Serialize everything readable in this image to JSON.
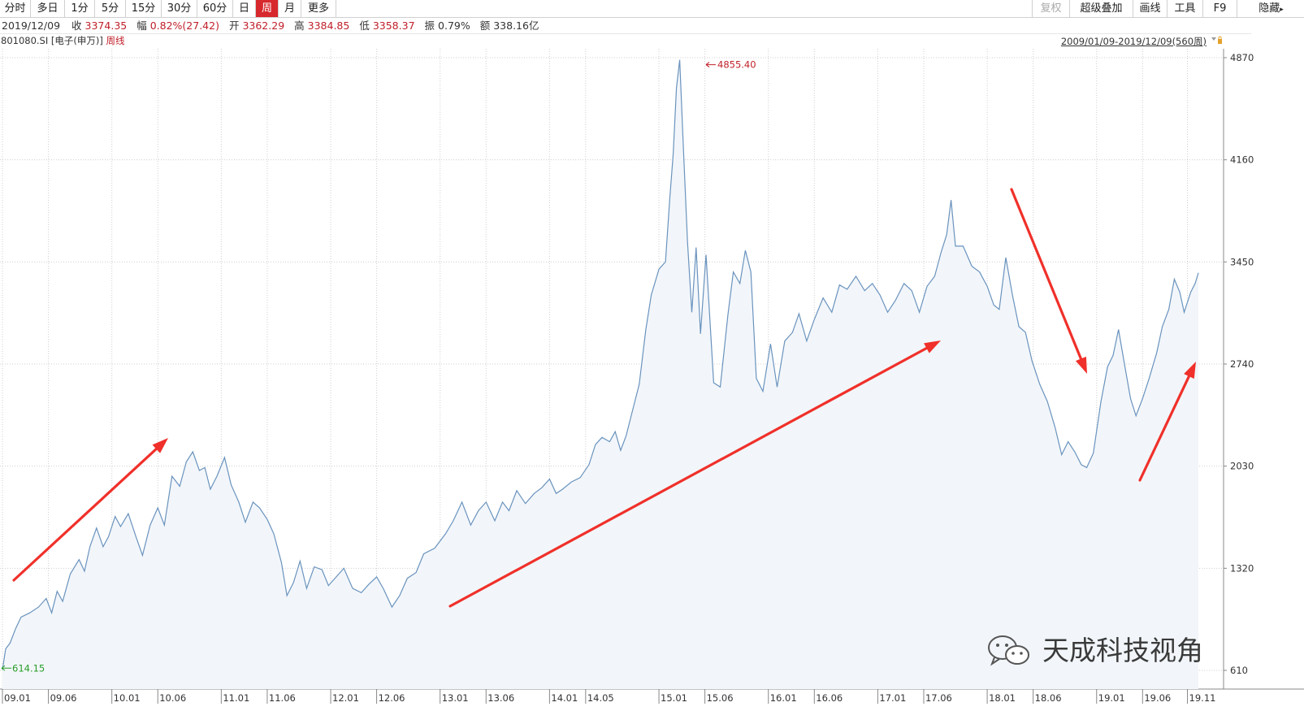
{
  "toolbar": {
    "tabs": [
      "分时",
      "多日",
      "1分",
      "5分",
      "15分",
      "30分",
      "60分",
      "日",
      "周",
      "月",
      "更多"
    ],
    "active_tab": "周",
    "right_buttons": [
      "复权",
      "超级叠加",
      "画线",
      "工具",
      "F9",
      "隐藏"
    ]
  },
  "quote": {
    "date": "2019/12/09",
    "close_label": "收",
    "close": "3374.35",
    "change_label": "幅",
    "change": "0.82%(27.42)",
    "open_label": "开",
    "open": "3362.29",
    "high_label": "高",
    "high": "3384.85",
    "low_label": "低",
    "low": "3358.37",
    "amplitude_label": "振",
    "amplitude": "0.79%",
    "amount_label": "额",
    "amount": "338.16亿"
  },
  "instrument": {
    "code": "801080.SI",
    "name": "[电子(申万)]",
    "period": "周线",
    "range": "2009/01/09-2019/12/09(560周)"
  },
  "watermark": "天成科技视角",
  "colors": {
    "line": "#6a93be",
    "fill": "#f2f6fa",
    "active_tab": "#d7282d",
    "max_label": "#c0202a",
    "min_label": "#2a9d2a",
    "arrow": "#f0302a"
  },
  "chart_data": {
    "type": "area",
    "title": "",
    "xlabel": "",
    "ylabel": "",
    "ylim": [
      455,
      4950
    ],
    "xlim": [
      2009.0,
      2020.0
    ],
    "y_ticks": [
      4870,
      4160,
      3450,
      2740,
      2030,
      1320,
      610
    ],
    "x_ticks": [
      {
        "label": "09.01",
        "t": 2009.0
      },
      {
        "label": "09.06",
        "t": 2009.42
      },
      {
        "label": "10.01",
        "t": 2010.0
      },
      {
        "label": "10.06",
        "t": 2010.42
      },
      {
        "label": "11.01",
        "t": 2011.0
      },
      {
        "label": "11.06",
        "t": 2011.42
      },
      {
        "label": "12.01",
        "t": 2012.0
      },
      {
        "label": "12.06",
        "t": 2012.42
      },
      {
        "label": "13.01",
        "t": 2013.0
      },
      {
        "label": "13.06",
        "t": 2013.42
      },
      {
        "label": "14.01",
        "t": 2014.0
      },
      {
        "label": "14.05",
        "t": 2014.33
      },
      {
        "label": "15.01",
        "t": 2015.0
      },
      {
        "label": "15.06",
        "t": 2015.42
      },
      {
        "label": "16.01",
        "t": 2016.0
      },
      {
        "label": "16.06",
        "t": 2016.42
      },
      {
        "label": "17.01",
        "t": 2017.0
      },
      {
        "label": "17.06",
        "t": 2017.42
      },
      {
        "label": "18.01",
        "t": 2018.0
      },
      {
        "label": "18.06",
        "t": 2018.42
      },
      {
        "label": "19.01",
        "t": 2019.0
      },
      {
        "label": "19.06",
        "t": 2019.42
      },
      {
        "label": "19.11",
        "t": 2019.83
      }
    ],
    "series": [
      {
        "points": [
          [
            2009.0,
            614
          ],
          [
            2009.03,
            760
          ],
          [
            2009.07,
            800
          ],
          [
            2009.12,
            900
          ],
          [
            2009.17,
            980
          ],
          [
            2009.25,
            1010
          ],
          [
            2009.33,
            1050
          ],
          [
            2009.4,
            1110
          ],
          [
            2009.45,
            1010
          ],
          [
            2009.5,
            1160
          ],
          [
            2009.55,
            1090
          ],
          [
            2009.62,
            1280
          ],
          [
            2009.7,
            1380
          ],
          [
            2009.75,
            1300
          ],
          [
            2009.8,
            1470
          ],
          [
            2009.86,
            1600
          ],
          [
            2009.92,
            1470
          ],
          [
            2009.97,
            1540
          ],
          [
            2010.03,
            1680
          ],
          [
            2010.08,
            1610
          ],
          [
            2010.15,
            1700
          ],
          [
            2010.22,
            1540
          ],
          [
            2010.28,
            1410
          ],
          [
            2010.35,
            1620
          ],
          [
            2010.42,
            1740
          ],
          [
            2010.48,
            1620
          ],
          [
            2010.55,
            1960
          ],
          [
            2010.62,
            1890
          ],
          [
            2010.68,
            2060
          ],
          [
            2010.74,
            2130
          ],
          [
            2010.8,
            2000
          ],
          [
            2010.85,
            2020
          ],
          [
            2010.9,
            1870
          ],
          [
            2010.96,
            1960
          ],
          [
            2011.03,
            2090
          ],
          [
            2011.09,
            1900
          ],
          [
            2011.16,
            1780
          ],
          [
            2011.22,
            1640
          ],
          [
            2011.29,
            1780
          ],
          [
            2011.35,
            1740
          ],
          [
            2011.42,
            1660
          ],
          [
            2011.48,
            1560
          ],
          [
            2011.55,
            1360
          ],
          [
            2011.6,
            1130
          ],
          [
            2011.66,
            1220
          ],
          [
            2011.72,
            1370
          ],
          [
            2011.78,
            1180
          ],
          [
            2011.85,
            1330
          ],
          [
            2011.92,
            1310
          ],
          [
            2011.98,
            1200
          ],
          [
            2012.05,
            1260
          ],
          [
            2012.12,
            1320
          ],
          [
            2012.2,
            1180
          ],
          [
            2012.28,
            1150
          ],
          [
            2012.35,
            1210
          ],
          [
            2012.42,
            1260
          ],
          [
            2012.48,
            1180
          ],
          [
            2012.56,
            1050
          ],
          [
            2012.63,
            1130
          ],
          [
            2012.7,
            1250
          ],
          [
            2012.78,
            1290
          ],
          [
            2012.85,
            1420
          ],
          [
            2012.95,
            1460
          ],
          [
            2013.05,
            1560
          ],
          [
            2013.12,
            1650
          ],
          [
            2013.2,
            1780
          ],
          [
            2013.28,
            1620
          ],
          [
            2013.35,
            1720
          ],
          [
            2013.42,
            1780
          ],
          [
            2013.5,
            1650
          ],
          [
            2013.57,
            1780
          ],
          [
            2013.63,
            1720
          ],
          [
            2013.7,
            1860
          ],
          [
            2013.78,
            1770
          ],
          [
            2013.86,
            1840
          ],
          [
            2013.93,
            1880
          ],
          [
            2014.0,
            1940
          ],
          [
            2014.06,
            1840
          ],
          [
            2014.12,
            1870
          ],
          [
            2014.2,
            1920
          ],
          [
            2014.28,
            1950
          ],
          [
            2014.36,
            2040
          ],
          [
            2014.42,
            2180
          ],
          [
            2014.48,
            2230
          ],
          [
            2014.55,
            2200
          ],
          [
            2014.6,
            2270
          ],
          [
            2014.65,
            2140
          ],
          [
            2014.7,
            2240
          ],
          [
            2014.76,
            2420
          ],
          [
            2014.82,
            2600
          ],
          [
            2014.88,
            2980
          ],
          [
            2014.93,
            3220
          ],
          [
            2015.0,
            3400
          ],
          [
            2015.06,
            3450
          ],
          [
            2015.1,
            3900
          ],
          [
            2015.13,
            4200
          ],
          [
            2015.16,
            4660
          ],
          [
            2015.19,
            4855
          ],
          [
            2015.22,
            4300
          ],
          [
            2015.26,
            3600
          ],
          [
            2015.3,
            3100
          ],
          [
            2015.34,
            3550
          ],
          [
            2015.38,
            2950
          ],
          [
            2015.43,
            3500
          ],
          [
            2015.5,
            2610
          ],
          [
            2015.56,
            2580
          ],
          [
            2015.63,
            3080
          ],
          [
            2015.68,
            3380
          ],
          [
            2015.74,
            3300
          ],
          [
            2015.79,
            3530
          ],
          [
            2015.84,
            3380
          ],
          [
            2015.89,
            2640
          ],
          [
            2015.95,
            2550
          ],
          [
            2016.02,
            2880
          ],
          [
            2016.08,
            2580
          ],
          [
            2016.15,
            2900
          ],
          [
            2016.22,
            2960
          ],
          [
            2016.28,
            3090
          ],
          [
            2016.35,
            2900
          ],
          [
            2016.42,
            3050
          ],
          [
            2016.5,
            3200
          ],
          [
            2016.58,
            3100
          ],
          [
            2016.65,
            3290
          ],
          [
            2016.72,
            3260
          ],
          [
            2016.8,
            3350
          ],
          [
            2016.88,
            3250
          ],
          [
            2016.95,
            3300
          ],
          [
            2017.02,
            3220
          ],
          [
            2017.09,
            3100
          ],
          [
            2017.16,
            3180
          ],
          [
            2017.24,
            3300
          ],
          [
            2017.31,
            3250
          ],
          [
            2017.38,
            3100
          ],
          [
            2017.45,
            3280
          ],
          [
            2017.52,
            3350
          ],
          [
            2017.58,
            3520
          ],
          [
            2017.63,
            3640
          ],
          [
            2017.67,
            3880
          ],
          [
            2017.71,
            3560
          ],
          [
            2017.78,
            3560
          ],
          [
            2017.86,
            3420
          ],
          [
            2017.93,
            3380
          ],
          [
            2018.0,
            3280
          ],
          [
            2018.06,
            3150
          ],
          [
            2018.11,
            3120
          ],
          [
            2018.17,
            3480
          ],
          [
            2018.23,
            3220
          ],
          [
            2018.29,
            3000
          ],
          [
            2018.35,
            2960
          ],
          [
            2018.41,
            2760
          ],
          [
            2018.48,
            2600
          ],
          [
            2018.55,
            2480
          ],
          [
            2018.62,
            2300
          ],
          [
            2018.68,
            2110
          ],
          [
            2018.74,
            2200
          ],
          [
            2018.8,
            2130
          ],
          [
            2018.86,
            2040
          ],
          [
            2018.91,
            2020
          ],
          [
            2018.97,
            2120
          ],
          [
            2019.04,
            2480
          ],
          [
            2019.1,
            2720
          ],
          [
            2019.15,
            2800
          ],
          [
            2019.2,
            2980
          ],
          [
            2019.25,
            2760
          ],
          [
            2019.31,
            2500
          ],
          [
            2019.36,
            2380
          ],
          [
            2019.42,
            2500
          ],
          [
            2019.48,
            2640
          ],
          [
            2019.55,
            2820
          ],
          [
            2019.6,
            3000
          ],
          [
            2019.66,
            3120
          ],
          [
            2019.71,
            3330
          ],
          [
            2019.76,
            3240
          ],
          [
            2019.8,
            3100
          ],
          [
            2019.86,
            3240
          ],
          [
            2019.9,
            3300
          ],
          [
            2019.93,
            3374
          ]
        ]
      }
    ],
    "annotations": [
      {
        "text": "4855.40",
        "value": 4855.4,
        "kind": "max"
      },
      {
        "text": "614.15",
        "value": 614.15,
        "kind": "min"
      }
    ]
  }
}
